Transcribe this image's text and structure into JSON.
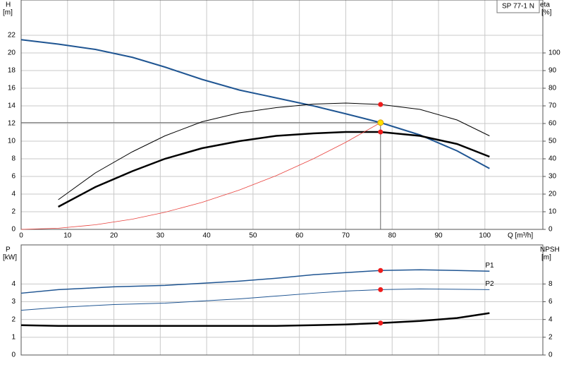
{
  "label": "SP 77-1 N",
  "duty_point": {
    "q": 77.5,
    "h": 12.1
  },
  "chart_data": [
    {
      "type": "line",
      "y_label": [
        "H",
        "[m]"
      ],
      "y2_label": [
        "eta",
        "[%]"
      ],
      "x_label": "Q [m³/h]",
      "x": [
        0,
        8,
        16,
        24,
        31,
        39,
        47,
        55,
        63,
        70,
        77.5,
        86,
        94,
        101
      ],
      "xlim": [
        0,
        112.5
      ],
      "xticks": [
        0,
        10,
        20,
        30,
        40,
        50,
        60,
        70,
        80,
        90,
        100
      ],
      "ylim": [
        0,
        26
      ],
      "yticks": [
        0,
        2,
        4,
        6,
        8,
        10,
        12,
        14,
        16,
        18,
        20,
        22
      ],
      "y2lim": [
        0,
        130
      ],
      "y2ticks": [
        0,
        10,
        20,
        30,
        40,
        50,
        60,
        70,
        80,
        90,
        100
      ],
      "grid": true,
      "series": [
        {
          "color": "#1f5592",
          "line_width": 2,
          "values": [
            21.5,
            21.0,
            20.4,
            19.5,
            18.4,
            17.0,
            15.8,
            14.9,
            14.0,
            13.1,
            12.1,
            10.7,
            8.9,
            6.9
          ]
        },
        {
          "color": "#000000",
          "line_width": 1,
          "axis": "y2",
          "values": [
            null,
            16.8,
            32,
            44,
            53,
            61,
            66,
            69,
            71,
            71.6,
            70.8,
            68,
            62,
            53
          ]
        },
        {
          "color": "#000000",
          "line_width": 2.5,
          "axis": "y2",
          "values": [
            null,
            12.8,
            24,
            33,
            40,
            46,
            50,
            53,
            54.4,
            55.2,
            55.2,
            53,
            48.4,
            41.2
          ]
        },
        {
          "color": "#e8413c",
          "line_width": 0.8,
          "values": [
            0,
            0.13,
            0.52,
            1.16,
            1.94,
            3.06,
            4.45,
            6.09,
            8.0,
            9.87,
            12.1,
            null,
            null,
            null
          ]
        }
      ]
    },
    {
      "type": "line",
      "y_label": [
        "P",
        "[kW]"
      ],
      "y2_label": [
        "NPSH",
        "[m]"
      ],
      "x": [
        0,
        8,
        20,
        31,
        39,
        47,
        55,
        63,
        70,
        77.5,
        86,
        94,
        101
      ],
      "xlim": [
        0,
        112.5
      ],
      "ylim": [
        0,
        6.2
      ],
      "yticks": [
        0,
        1,
        2,
        3,
        4
      ],
      "y2lim": [
        0,
        12.4
      ],
      "y2ticks": [
        0,
        2,
        4,
        6,
        8
      ],
      "grid": true,
      "series": [
        {
          "name": "P1",
          "color": "#1f5592",
          "line_width": 1.5,
          "values": [
            3.48,
            3.68,
            3.84,
            3.92,
            4.04,
            4.16,
            4.32,
            4.52,
            4.64,
            4.76,
            4.8,
            4.76,
            4.72
          ]
        },
        {
          "name": "P2",
          "color": "#1f5592",
          "line_width": 1,
          "values": [
            2.52,
            2.68,
            2.84,
            2.92,
            3.04,
            3.16,
            3.32,
            3.48,
            3.6,
            3.68,
            3.72,
            3.7,
            3.68
          ]
        },
        {
          "color": "#000000",
          "line_width": 2.5,
          "axis": "y2",
          "values": [
            3.36,
            3.28,
            3.28,
            3.28,
            3.28,
            3.28,
            3.28,
            3.36,
            3.44,
            3.6,
            3.84,
            4.16,
            4.72
          ]
        }
      ]
    }
  ]
}
